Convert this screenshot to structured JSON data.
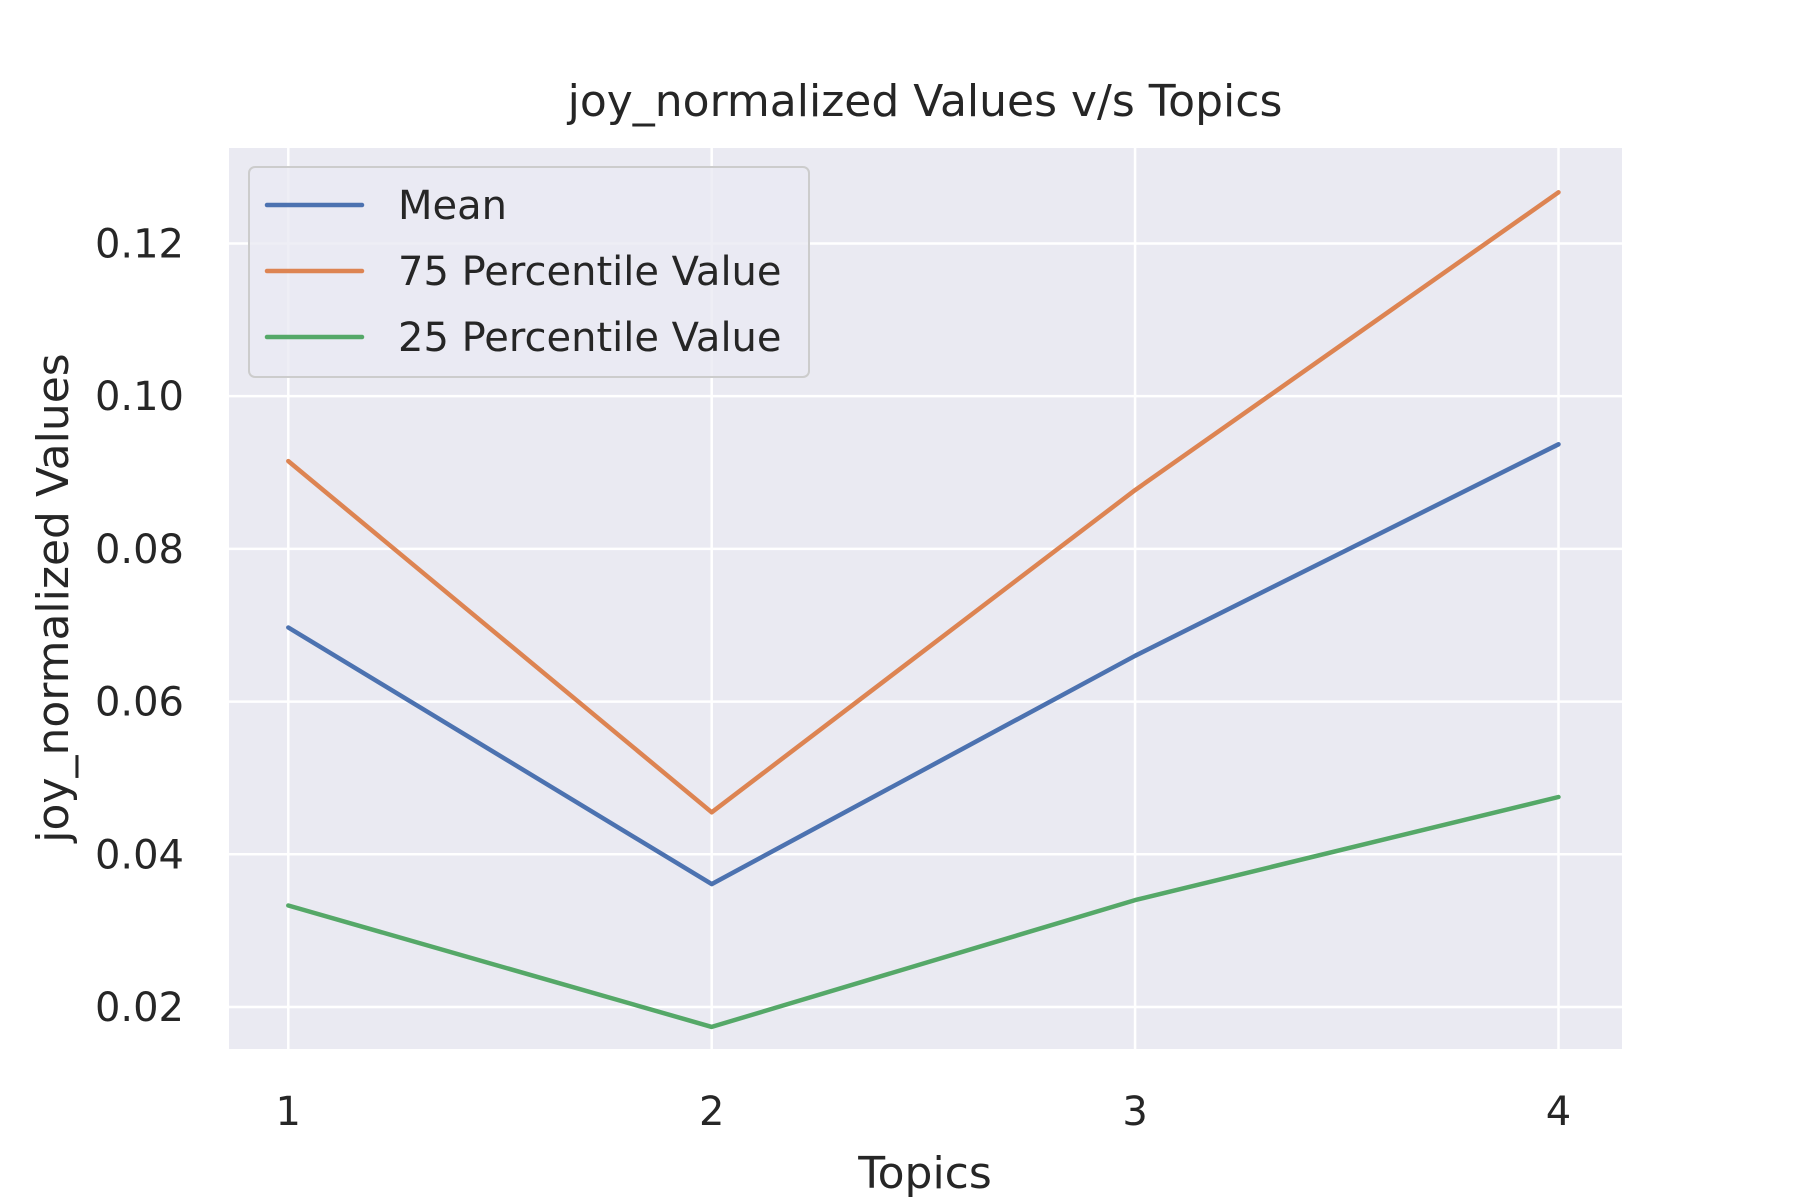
{
  "chart_data": {
    "type": "line",
    "title": "joy_normalized Values v/s Topics",
    "xlabel": "Topics",
    "ylabel": "joy_normalized Values",
    "x": [
      1,
      2,
      3,
      4
    ],
    "x_ticks": [
      "1",
      "2",
      "3",
      "4"
    ],
    "y_ticks": [
      "0.02",
      "0.04",
      "0.06",
      "0.08",
      "0.10",
      "0.12"
    ],
    "y_tick_values": [
      0.02,
      0.04,
      0.06,
      0.08,
      0.1,
      0.12
    ],
    "xlim": [
      0.86,
      4.15
    ],
    "ylim": [
      0.0145,
      0.1325
    ],
    "grid": true,
    "legend_position": "upper-left",
    "series": [
      {
        "name": "Mean",
        "color": "#4C72B0",
        "values": [
          0.0697,
          0.0361,
          0.066,
          0.0937
        ]
      },
      {
        "name": "75 Percentile Value",
        "color": "#DD8452",
        "values": [
          0.0915,
          0.0455,
          0.0877,
          0.1267
        ]
      },
      {
        "name": "25 Percentile Value",
        "color": "#55A868",
        "values": [
          0.0333,
          0.0174,
          0.034,
          0.0475
        ]
      }
    ],
    "colors": {
      "plot_background": "#EAEAF2",
      "grid": "#FFFFFF",
      "text": "#262626"
    }
  }
}
